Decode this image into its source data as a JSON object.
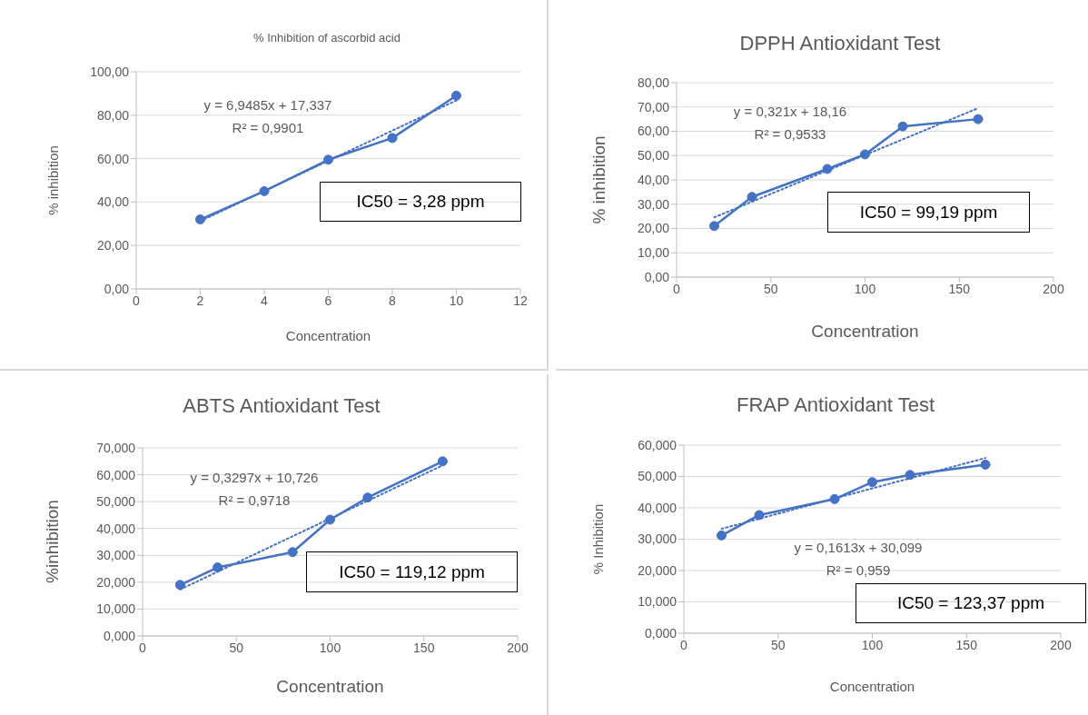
{
  "chart_data": [
    {
      "type": "line",
      "title": "% Inhibition of ascorbid acid",
      "xlabel": "Concentration",
      "ylabel": "% inhibition",
      "marker": "circle",
      "grid": "y",
      "xlim": [
        0,
        12
      ],
      "xticks": [
        0,
        2,
        4,
        6,
        8,
        10,
        12
      ],
      "ylim": [
        0,
        100
      ],
      "yticks": [
        {
          "value": 0,
          "label": "0,00"
        },
        {
          "value": 20,
          "label": "20,00"
        },
        {
          "value": 40,
          "label": "40,00"
        },
        {
          "value": 60,
          "label": "60,00"
        },
        {
          "value": 80,
          "label": "80,00"
        },
        {
          "value": 100,
          "label": "100,00"
        }
      ],
      "x": [
        2,
        4,
        6,
        8,
        10
      ],
      "series": [
        {
          "color": "#4472c4",
          "values": [
            32,
            45,
            59.5,
            69.5,
            89
          ]
        },
        {
          "type": "line",
          "color": "#4472c4",
          "line_style": "dotted",
          "marker": "none",
          "x": [
            2,
            10
          ],
          "values": [
            31.2,
            86.8
          ]
        }
      ],
      "annotations": [
        "y = 6,9485x + 17,337",
        "R² = 0,9901",
        "IC50 = 3,28 ppm"
      ]
    },
    {
      "type": "line",
      "title": "DPPH Antioxidant Test",
      "xlabel": "Concentration",
      "ylabel": "% inhibition",
      "marker": "circle",
      "grid": "y",
      "xlim": [
        0,
        200
      ],
      "xticks": [
        0,
        50,
        100,
        150,
        200
      ],
      "ylim": [
        0,
        80
      ],
      "yticks": [
        {
          "value": 0,
          "label": "0,00"
        },
        {
          "value": 10,
          "label": "10,00"
        },
        {
          "value": 20,
          "label": "20,00"
        },
        {
          "value": 30,
          "label": "30,00"
        },
        {
          "value": 40,
          "label": "40,00"
        },
        {
          "value": 50,
          "label": "50,00"
        },
        {
          "value": 60,
          "label": "60,00"
        },
        {
          "value": 70,
          "label": "70,00"
        },
        {
          "value": 80,
          "label": "80,00"
        }
      ],
      "x": [
        20,
        40,
        80,
        100,
        120,
        160
      ],
      "series": [
        {
          "color": "#4472c4",
          "values": [
            21,
            33,
            44.5,
            50.5,
            62,
            65
          ]
        },
        {
          "type": "line",
          "color": "#4472c4",
          "line_style": "dotted",
          "marker": "none",
          "x": [
            20,
            160
          ],
          "values": [
            24.6,
            69.5
          ]
        }
      ],
      "annotations": [
        "y = 0,321x + 18,16",
        "R² = 0,9533",
        "IC50 = 99,19 ppm"
      ]
    },
    {
      "type": "line",
      "title": "ABTS Antioxidant Test",
      "xlabel": "Concentration",
      "ylabel": "%inhibition",
      "marker": "circle",
      "grid": "y",
      "xlim": [
        0,
        200
      ],
      "xticks": [
        0,
        50,
        100,
        150,
        200
      ],
      "ylim": [
        0,
        70
      ],
      "yticks": [
        {
          "value": 0,
          "label": "0,000"
        },
        {
          "value": 10,
          "label": "10,000"
        },
        {
          "value": 20,
          "label": "20,000"
        },
        {
          "value": 30,
          "label": "30,000"
        },
        {
          "value": 40,
          "label": "40,000"
        },
        {
          "value": 50,
          "label": "50,000"
        },
        {
          "value": 60,
          "label": "60,000"
        },
        {
          "value": 70,
          "label": "70,000"
        }
      ],
      "x": [
        20,
        40,
        80,
        100,
        120,
        160
      ],
      "series": [
        {
          "color": "#4472c4",
          "values": [
            19,
            25.5,
            31.2,
            43.3,
            51.5,
            65
          ]
        },
        {
          "type": "line",
          "color": "#4472c4",
          "line_style": "dotted",
          "marker": "none",
          "x": [
            20,
            160
          ],
          "values": [
            17.3,
            63.5
          ]
        }
      ],
      "annotations": [
        "y = 0,3297x + 10,726",
        "R² = 0,9718",
        "IC50 = 119,12 ppm"
      ]
    },
    {
      "type": "line",
      "title": "FRAP Antioxidant Test",
      "xlabel": "Concentration",
      "ylabel": "% Inhibition",
      "marker": "circle",
      "grid": "y",
      "xlim": [
        0,
        200
      ],
      "xticks": [
        0,
        50,
        100,
        150,
        200
      ],
      "ylim": [
        0,
        60
      ],
      "yticks": [
        {
          "value": 0,
          "label": "0,000"
        },
        {
          "value": 10,
          "label": "10,000"
        },
        {
          "value": 20,
          "label": "20,000"
        },
        {
          "value": 30,
          "label": "30,000"
        },
        {
          "value": 40,
          "label": "40,000"
        },
        {
          "value": 50,
          "label": "50,000"
        },
        {
          "value": 60,
          "label": "60,000"
        }
      ],
      "x": [
        20,
        40,
        80,
        100,
        120,
        160
      ],
      "series": [
        {
          "color": "#4472c4",
          "values": [
            31.2,
            37.7,
            42.8,
            48.2,
            50.5,
            53.8
          ]
        },
        {
          "type": "line",
          "color": "#4472c4",
          "line_style": "dotted",
          "marker": "none",
          "x": [
            20,
            160
          ],
          "values": [
            33.3,
            55.9
          ]
        }
      ],
      "annotations": [
        "y = 0,1613x + 30,099",
        "R² = 0,959",
        "IC50 = 123,37 ppm"
      ]
    }
  ]
}
